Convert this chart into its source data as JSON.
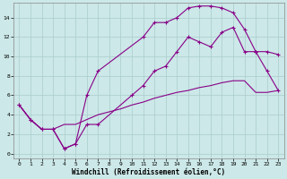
{
  "xlabel": "Windchill (Refroidissement éolien,°C)",
  "bg_color": "#cce8e8",
  "line_color": "#880088",
  "grid_color": "#aacccc",
  "xlim": [
    -0.5,
    23.5
  ],
  "ylim": [
    -0.5,
    15.5
  ],
  "xticks": [
    0,
    1,
    2,
    3,
    4,
    5,
    6,
    7,
    8,
    9,
    10,
    11,
    12,
    13,
    14,
    15,
    16,
    17,
    18,
    19,
    20,
    21,
    22,
    23
  ],
  "yticks": [
    0,
    2,
    4,
    6,
    8,
    10,
    12,
    14
  ],
  "curve_upper_x": [
    0,
    1,
    2,
    3,
    4,
    5,
    6,
    7,
    11,
    12,
    13,
    14,
    15,
    16,
    17,
    18,
    19,
    20,
    21,
    22,
    23
  ],
  "curve_upper_y": [
    5,
    3.5,
    2.5,
    2.5,
    0.5,
    1.0,
    6.0,
    8.5,
    12.0,
    13.5,
    13.5,
    14.0,
    15.0,
    15.2,
    15.2,
    15.0,
    14.5,
    12.8,
    10.5,
    10.5,
    10.2
  ],
  "curve_mid_x": [
    0,
    1,
    2,
    3,
    4,
    5,
    6,
    7,
    10,
    11,
    12,
    13,
    14,
    15,
    16,
    17,
    18,
    19,
    20,
    21,
    22,
    23
  ],
  "curve_mid_y": [
    5,
    3.5,
    2.5,
    2.5,
    0.5,
    1.0,
    3.0,
    3.0,
    6.0,
    7.0,
    8.5,
    9.0,
    10.5,
    12.0,
    11.5,
    11.0,
    12.5,
    13.0,
    10.5,
    10.5,
    8.5,
    6.5
  ],
  "curve_low_x": [
    0,
    1,
    2,
    3,
    4,
    5,
    6,
    7,
    8,
    9,
    10,
    11,
    12,
    13,
    14,
    15,
    16,
    17,
    18,
    19,
    20,
    21,
    22,
    23
  ],
  "curve_low_y": [
    5,
    3.5,
    2.5,
    2.5,
    3.0,
    3.0,
    3.5,
    4.0,
    4.3,
    4.6,
    5.0,
    5.3,
    5.7,
    6.0,
    6.3,
    6.5,
    6.8,
    7.0,
    7.3,
    7.5,
    7.5,
    6.3,
    6.3,
    6.5
  ]
}
